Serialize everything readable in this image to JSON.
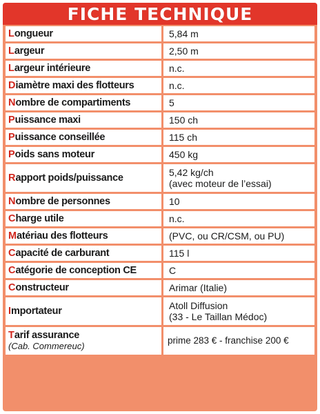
{
  "title": "FICHE TECHNIQUE",
  "rows": [
    {
      "label": "Longueur",
      "value": "5,84 m"
    },
    {
      "label": "Largeur",
      "value": "2,50 m"
    },
    {
      "label": "Largeur intérieure",
      "value": "n.c."
    },
    {
      "label": "Diamètre maxi des flotteurs",
      "value": "n.c."
    },
    {
      "label": "Nombre de compartiments",
      "value": "5"
    },
    {
      "label": "Puissance maxi",
      "value": "150 ch"
    },
    {
      "label": "Puissance conseillée",
      "value": "115 ch"
    },
    {
      "label": "Poids sans moteur",
      "value": "450 kg"
    },
    {
      "label": "Rapport poids/puissance",
      "value": "5,42 kg/ch",
      "value2": "(avec moteur de l’essai)"
    },
    {
      "label": "Nombre de personnes",
      "value": "10"
    },
    {
      "label": "Charge utile",
      "value": "n.c."
    },
    {
      "label": "Matériau des flotteurs",
      "value": "(PVC, ou CR/CSM, ou PU)"
    },
    {
      "label": "Capacité de carburant",
      "value": "115 l"
    },
    {
      "label": "Catégorie de conception CE",
      "value": "C"
    },
    {
      "label": "Constructeur",
      "value": "Arimar (Italie)"
    },
    {
      "label": "Importateur",
      "value": "Atoll Diffusion",
      "value2": "(33 - Le Taillan Médoc)"
    },
    {
      "label": "Tarif assurance",
      "sublabel": "(Cab. Commereuc)",
      "value": "prime 283 € - franchise 200 €"
    }
  ],
  "colors": {
    "title_bg": "#e2362a",
    "frame": "#f28f6b",
    "initial": "#d0251b"
  }
}
